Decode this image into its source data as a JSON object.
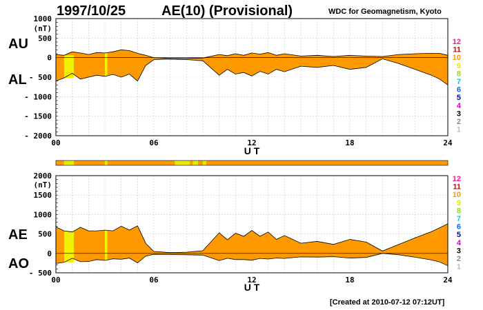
{
  "header": {
    "date": "1997/10/25",
    "title": "AE(10) (Provisional)",
    "source": "WDC for Geomagnetism, Kyoto"
  },
  "footer": {
    "created": "[Created at 2010-07-12 07:12UT]"
  },
  "legend": {
    "labels": [
      "12",
      "11",
      "10",
      "9",
      "8",
      "7",
      "6",
      "5",
      "4",
      "3",
      "2",
      "1"
    ],
    "colors": [
      "#ff1493",
      "#e00000",
      "#ff9900",
      "#e8e800",
      "#90e000",
      "#00cccc",
      "#0066ff",
      "#0000aa",
      "#cc00cc",
      "#000000",
      "#888888",
      "#bbbbbb"
    ]
  },
  "chart_data": [
    {
      "type": "area",
      "name": "AU-AL",
      "top_label": "AU",
      "bottom_label": "AL",
      "unit": "(nT)",
      "xlabel": "U T",
      "xlim": [
        0,
        24
      ],
      "ylim": [
        -2000,
        1000
      ],
      "yticks": [
        1000,
        500,
        0,
        -500,
        -1000,
        -1500,
        -2000
      ],
      "ytick_labels": [
        "1000",
        "500",
        "0",
        "- 500",
        "- 1000",
        "- 1500",
        "- 2000"
      ],
      "xticks": [
        0,
        6,
        12,
        18,
        24
      ],
      "xtick_labels": [
        "00",
        "06",
        "12",
        "18",
        "24"
      ],
      "grid": true,
      "series": [
        {
          "name": "AU",
          "x": [
            0,
            0.5,
            1,
            1.5,
            2,
            2.5,
            3,
            3.5,
            4,
            4.5,
            5,
            5.5,
            6,
            7,
            8,
            9,
            10,
            10.5,
            11,
            11.5,
            12,
            12.5,
            13,
            13.5,
            14,
            15,
            16,
            17,
            18,
            19,
            20,
            21,
            22,
            23,
            23.5,
            24
          ],
          "values": [
            80,
            60,
            150,
            120,
            80,
            130,
            120,
            150,
            200,
            180,
            110,
            60,
            0,
            -20,
            -20,
            -10,
            80,
            50,
            100,
            60,
            120,
            90,
            130,
            60,
            100,
            40,
            60,
            30,
            60,
            40,
            30,
            80,
            100,
            110,
            110,
            60
          ]
        },
        {
          "name": "AL",
          "x": [
            0,
            0.5,
            1,
            1.5,
            2,
            2.5,
            3,
            3.5,
            4,
            4.5,
            5,
            5.5,
            6,
            7,
            8,
            9,
            10,
            10.5,
            11,
            11.5,
            12,
            12.5,
            13,
            13.5,
            14,
            15,
            16,
            17,
            18,
            19,
            20,
            21,
            22,
            23,
            23.5,
            24
          ],
          "values": [
            -600,
            -520,
            -400,
            -550,
            -500,
            -450,
            -480,
            -430,
            -500,
            -420,
            -600,
            -200,
            -50,
            -40,
            -50,
            -80,
            -450,
            -300,
            -420,
            -380,
            -470,
            -350,
            -420,
            -300,
            -360,
            -220,
            -250,
            -200,
            -300,
            -250,
            -30,
            -150,
            -300,
            -450,
            -550,
            -700
          ]
        }
      ]
    },
    {
      "type": "area",
      "name": "AE-AO",
      "top_label": "AE",
      "bottom_label": "AO",
      "unit": "(nT)",
      "xlabel": "U T",
      "xlim": [
        0,
        24
      ],
      "ylim": [
        -500,
        2000
      ],
      "yticks": [
        2000,
        1500,
        1000,
        500,
        0,
        -500
      ],
      "ytick_labels": [
        "2000",
        "1500",
        "1000",
        "500",
        "0",
        "- 500"
      ],
      "xticks": [
        0,
        6,
        12,
        18,
        24
      ],
      "xtick_labels": [
        "00",
        "06",
        "12",
        "18",
        "24"
      ],
      "grid": true,
      "series": [
        {
          "name": "AE",
          "x": [
            0,
            0.5,
            1,
            1.5,
            2,
            2.5,
            3,
            3.5,
            4,
            4.5,
            5,
            5.5,
            6,
            7,
            8,
            9,
            10,
            10.5,
            11,
            11.5,
            12,
            12.5,
            13,
            13.5,
            14,
            15,
            16,
            17,
            18,
            19,
            20,
            21,
            22,
            23,
            23.5,
            24
          ],
          "values": [
            680,
            580,
            550,
            670,
            580,
            580,
            600,
            580,
            700,
            600,
            710,
            260,
            50,
            20,
            30,
            70,
            530,
            350,
            520,
            440,
            590,
            440,
            550,
            360,
            460,
            260,
            310,
            230,
            360,
            290,
            60,
            230,
            400,
            560,
            660,
            760
          ]
        },
        {
          "name": "AO",
          "x": [
            0,
            0.5,
            1,
            1.5,
            2,
            2.5,
            3,
            3.5,
            4,
            4.5,
            5,
            5.5,
            6,
            7,
            8,
            9,
            10,
            10.5,
            11,
            11.5,
            12,
            12.5,
            13,
            13.5,
            14,
            15,
            16,
            17,
            18,
            19,
            20,
            21,
            22,
            23,
            23.5,
            24
          ],
          "values": [
            -260,
            -230,
            -125,
            -215,
            -210,
            -160,
            -180,
            -140,
            -150,
            -120,
            -245,
            -70,
            -25,
            -30,
            -35,
            -45,
            -185,
            -125,
            -160,
            -160,
            -175,
            -130,
            -145,
            -120,
            -130,
            -90,
            -95,
            -85,
            -120,
            -105,
            0,
            -35,
            -100,
            -170,
            -220,
            -320
          ]
        }
      ]
    }
  ],
  "activity_bar": {
    "segments": [
      {
        "start": 0,
        "end": 0.5,
        "color": "#ff9900"
      },
      {
        "start": 0.5,
        "end": 1.1,
        "color": "#e8e800"
      },
      {
        "start": 1.1,
        "end": 3.0,
        "color": "#ff9900"
      },
      {
        "start": 3.0,
        "end": 3.15,
        "color": "#e8e800"
      },
      {
        "start": 3.15,
        "end": 7.3,
        "color": "#ff9900"
      },
      {
        "start": 7.3,
        "end": 8.2,
        "color": "#e8e800"
      },
      {
        "start": 8.2,
        "end": 8.4,
        "color": "#ff9900"
      },
      {
        "start": 8.4,
        "end": 8.7,
        "color": "#e8e800"
      },
      {
        "start": 8.7,
        "end": 9.0,
        "color": "#ff9900"
      },
      {
        "start": 9.0,
        "end": 9.2,
        "color": "#e8e800"
      },
      {
        "start": 9.2,
        "end": 24,
        "color": "#ff9900"
      }
    ]
  },
  "highlight_bands": [
    {
      "start": 0.5,
      "end": 1.1,
      "color": "#f0f000"
    },
    {
      "start": 3.0,
      "end": 3.15,
      "color": "#f0f000"
    }
  ]
}
